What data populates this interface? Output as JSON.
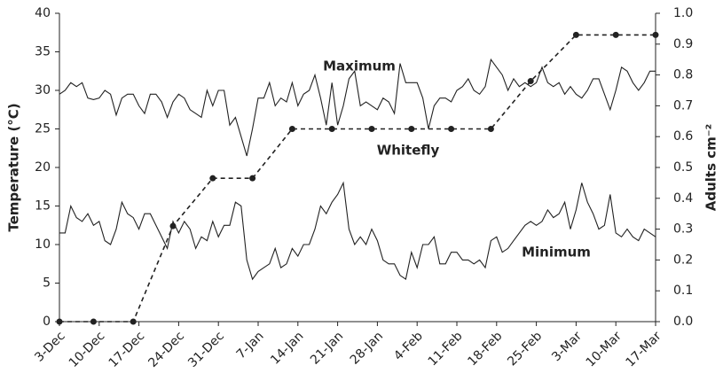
{
  "chart_data": {
    "type": "line",
    "ylabel": "Temperature (°C)",
    "y2label": "Adults cm⁻²",
    "annotations": [
      "Maximum",
      "Whitefly",
      "Minimum"
    ],
    "xlim": [
      0,
      105
    ],
    "xticks": [
      {
        "value": 0,
        "label": "3-Dec"
      },
      {
        "value": 7,
        "label": "10-Dec"
      },
      {
        "value": 14,
        "label": "17-Dec"
      },
      {
        "value": 21,
        "label": "24-Dec"
      },
      {
        "value": 28,
        "label": "31-Dec"
      },
      {
        "value": 35,
        "label": "7-Jan"
      },
      {
        "value": 42,
        "label": "14-Jan"
      },
      {
        "value": 49,
        "label": "21-Jan"
      },
      {
        "value": 56,
        "label": "28-Jan"
      },
      {
        "value": 63,
        "label": "4-Feb"
      },
      {
        "value": 70,
        "label": "11-Feb"
      },
      {
        "value": 77,
        "label": "18-Feb"
      },
      {
        "value": 84,
        "label": "25-Feb"
      },
      {
        "value": 91,
        "label": "3-Mar"
      },
      {
        "value": 98,
        "label": "10-Mar"
      },
      {
        "value": 105,
        "label": "17-Mar"
      }
    ],
    "ylim": [
      0,
      40
    ],
    "yticks": [
      0,
      5,
      10,
      15,
      20,
      25,
      30,
      35,
      40
    ],
    "y2lim": [
      0,
      1
    ],
    "y2ticks": [
      {
        "value": 0,
        "label": "0.0"
      },
      0.1,
      0.2,
      0.3,
      0.4,
      0.5,
      0.6,
      0.7,
      0.8,
      0.9,
      {
        "value": 1,
        "label": "1.0"
      }
    ],
    "series": [
      {
        "name": "Maximum",
        "color": "#222222",
        "dashed": false,
        "markers": false,
        "x": [
          0,
          1,
          2,
          3,
          4,
          5,
          6,
          7,
          8,
          9,
          10,
          11,
          12,
          13,
          14,
          15,
          16,
          17,
          18,
          19,
          20,
          21,
          22,
          23,
          24,
          25,
          26,
          27,
          28,
          29,
          30,
          31,
          32,
          33,
          34,
          35,
          36,
          37,
          38,
          39,
          40,
          41,
          42,
          43,
          44,
          45,
          46,
          47,
          48,
          49,
          50,
          51,
          52,
          53,
          54,
          55,
          56,
          57,
          58,
          59,
          60,
          61,
          62,
          63,
          64,
          65,
          66,
          67,
          68,
          69,
          70,
          71,
          72,
          73,
          74,
          75,
          76,
          77,
          78,
          79,
          80,
          81,
          82,
          83,
          84,
          85,
          86,
          87,
          88,
          89,
          90,
          91,
          92,
          93,
          94,
          95,
          96,
          97,
          98,
          99,
          100,
          101,
          102,
          103,
          104,
          105
        ],
        "values": [
          29.5,
          30,
          31,
          30.5,
          31,
          29,
          28.8,
          29,
          30,
          29.5,
          26.8,
          29,
          29.5,
          29.5,
          28,
          27,
          29.5,
          29.5,
          28.5,
          26.5,
          28.5,
          29.5,
          29,
          27.5,
          27,
          26.5,
          30,
          28,
          30,
          30,
          25.5,
          26.5,
          24,
          21.5,
          25,
          29,
          29,
          31,
          28,
          29,
          28.5,
          31,
          28,
          29.5,
          30,
          32,
          29,
          25.5,
          31,
          25.5,
          28,
          31.5,
          32.5,
          28,
          28.5,
          28,
          27.5,
          29,
          28.5,
          27,
          33.5,
          31,
          31,
          31,
          29,
          25,
          28,
          29,
          29,
          28.5,
          30,
          30.5,
          31.5,
          30,
          29.5,
          30.5,
          34,
          33,
          32,
          30,
          31.5,
          30.5,
          31,
          30.5,
          31,
          33,
          31,
          30.5,
          31,
          29.5,
          30.5,
          29.5,
          29,
          30,
          31.5,
          31.5,
          29.5,
          27.5,
          30,
          33,
          32.5,
          31,
          30,
          31,
          32.5,
          32.5
        ]
      },
      {
        "name": "Minimum",
        "color": "#222222",
        "dashed": false,
        "markers": false,
        "x": [
          0,
          1,
          2,
          3,
          4,
          5,
          6,
          7,
          8,
          9,
          10,
          11,
          12,
          13,
          14,
          15,
          16,
          17,
          18,
          19,
          20,
          21,
          22,
          23,
          24,
          25,
          26,
          27,
          28,
          29,
          30,
          31,
          32,
          33,
          34,
          35,
          36,
          37,
          38,
          39,
          40,
          41,
          42,
          43,
          44,
          45,
          46,
          47,
          48,
          49,
          50,
          51,
          52,
          53,
          54,
          55,
          56,
          57,
          58,
          59,
          60,
          61,
          62,
          63,
          64,
          65,
          66,
          67,
          68,
          69,
          70,
          71,
          72,
          73,
          74,
          75,
          76,
          77,
          78,
          79,
          80,
          81,
          82,
          83,
          84,
          85,
          86,
          87,
          88,
          89,
          90,
          91,
          92,
          93,
          94,
          95,
          96,
          97,
          98,
          99,
          100,
          101,
          102,
          103,
          104,
          105
        ],
        "values": [
          11.5,
          11.5,
          15,
          13.5,
          13,
          14,
          12.5,
          13,
          10.5,
          10,
          12,
          15.5,
          14,
          13.5,
          12,
          14,
          14,
          12.5,
          11,
          9.5,
          13,
          11.5,
          13,
          12,
          9.5,
          11,
          10.5,
          13,
          11,
          12.5,
          12.5,
          15.5,
          15,
          8,
          5.5,
          6.5,
          7,
          7.5,
          9.5,
          7,
          7.5,
          9.5,
          8.5,
          10,
          10,
          12,
          15,
          14,
          15.5,
          16.5,
          18,
          12,
          10,
          11,
          10,
          12,
          10.5,
          8,
          7.5,
          7.5,
          6,
          5.5,
          9,
          7,
          10,
          10,
          11,
          7.5,
          7.5,
          9,
          9,
          8,
          8,
          7.5,
          8,
          7,
          10.5,
          11,
          9,
          9.5,
          10.5,
          11.5,
          12.5,
          13,
          12.5,
          13,
          14.5,
          13.5,
          14,
          15.5,
          12,
          14.5,
          18,
          15.5,
          14,
          12,
          12.5,
          16.5,
          11.5,
          11,
          12,
          11,
          10.5,
          12,
          11.5,
          11
        ]
      },
      {
        "name": "Whitefly",
        "color": "#222222",
        "axis": "y2",
        "dashed": true,
        "markers": true,
        "x": [
          0,
          6,
          13,
          20,
          27,
          34,
          41,
          48,
          55,
          62,
          69,
          76,
          83,
          91,
          98,
          105
        ],
        "values": [
          0,
          0,
          0,
          0.31,
          0.465,
          0.465,
          0.625,
          0.625,
          0.625,
          0.625,
          0.625,
          0.625,
          0.78,
          0.93,
          0.93,
          0.93
        ]
      }
    ]
  }
}
